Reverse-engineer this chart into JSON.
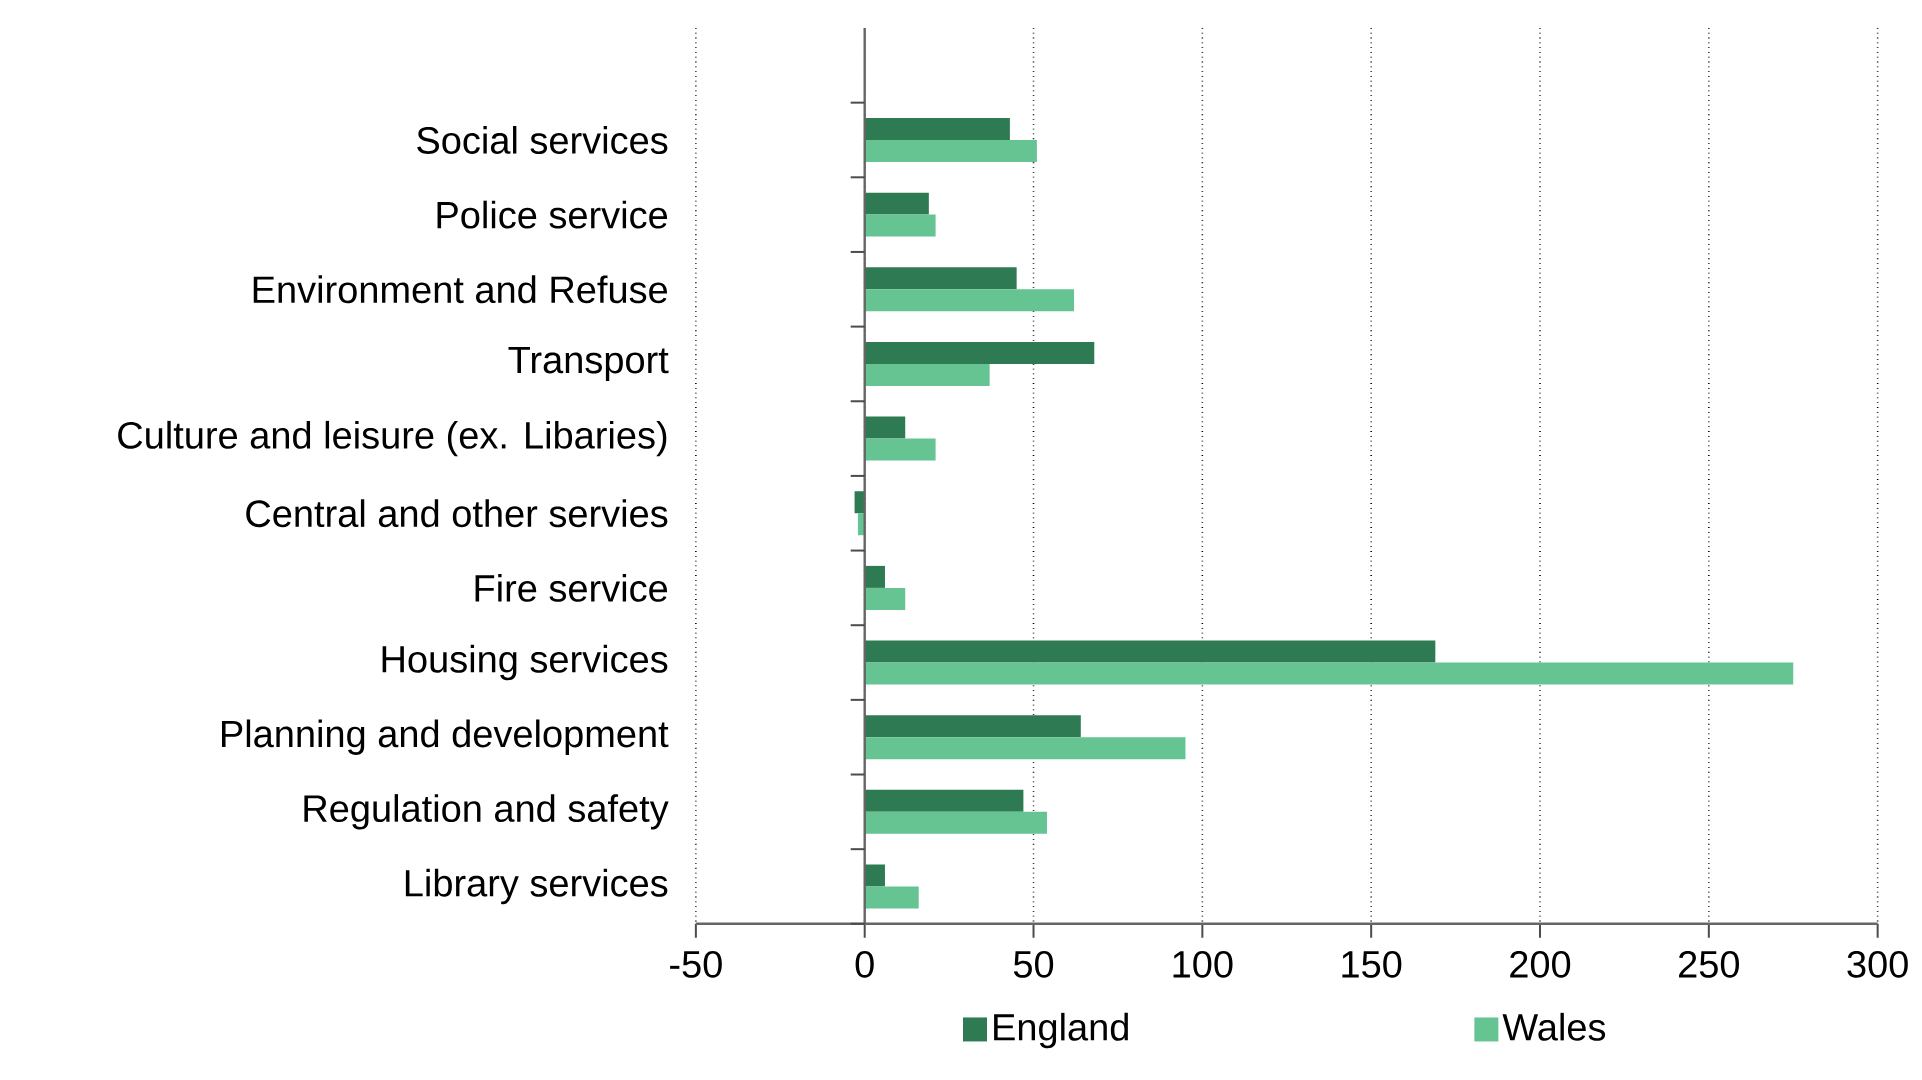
{
  "chart_data": {
    "type": "bar",
    "orientation": "horizontal",
    "categories": [
      "Social services",
      "Police service",
      "Environment and Refuse",
      "Transport",
      "Culture and leisure (ex. Libaries)",
      "Central and other servies",
      "Fire service",
      "Housing services",
      "Planning and development",
      "Regulation and safety",
      "Library services"
    ],
    "series": [
      {
        "name": "England",
        "color": "#2e7a52",
        "values": [
          43,
          19,
          45,
          68,
          12,
          -3,
          6,
          169,
          64,
          47,
          6
        ]
      },
      {
        "name": "Wales",
        "color": "#66c492",
        "values": [
          51,
          21,
          62,
          37,
          21,
          -2,
          12,
          275,
          95,
          54,
          16
        ]
      }
    ],
    "xlim": [
      -50,
      300
    ],
    "xticks": [
      -50,
      0,
      50,
      100,
      150,
      200,
      250,
      300
    ],
    "grid": "x",
    "legend": "bottom"
  }
}
